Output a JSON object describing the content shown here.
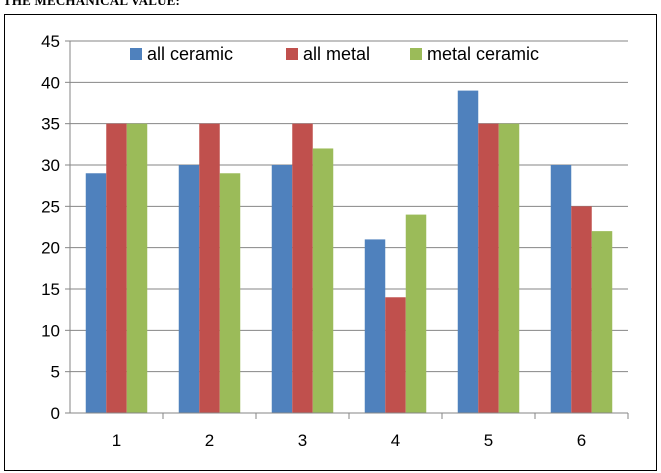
{
  "heading": "THE MECHANICAL VALUE:",
  "chart_data": {
    "type": "bar",
    "categories": [
      "1",
      "2",
      "3",
      "4",
      "5",
      "6"
    ],
    "series": [
      {
        "name": "all ceramic",
        "color": "#4f81bd",
        "values": [
          29,
          30,
          30,
          21,
          39,
          30
        ]
      },
      {
        "name": "all metal",
        "color": "#c0504d",
        "values": [
          35,
          35,
          35,
          14,
          35,
          25
        ]
      },
      {
        "name": "metal ceramic",
        "color": "#9bbb59",
        "values": [
          35,
          29,
          32,
          24,
          35,
          22
        ]
      }
    ],
    "ylim": [
      0,
      45
    ],
    "yticks": [
      0,
      5,
      10,
      15,
      20,
      25,
      30,
      35,
      40,
      45
    ],
    "grid": true,
    "legend": "top-right"
  }
}
